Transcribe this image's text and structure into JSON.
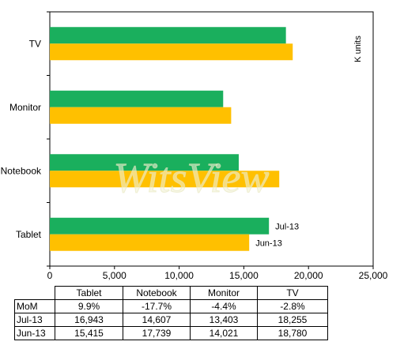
{
  "chart_data": {
    "type": "bar",
    "orientation": "horizontal",
    "categories": [
      "TV",
      "Monitor",
      "Notebook",
      "Tablet"
    ],
    "series": [
      {
        "name": "Jul-13",
        "values": [
          18255,
          13403,
          14607,
          16943
        ],
        "color": "#1aaf5d"
      },
      {
        "name": "Jun-13",
        "values": [
          18780,
          14021,
          17739,
          15415
        ],
        "color": "#ffc000"
      }
    ],
    "xlim": [
      0,
      25000
    ],
    "x_ticks": [
      "0",
      "5,000",
      "10,000",
      "15,000",
      "20,000",
      "25,000"
    ],
    "unit_label": "K units",
    "watermark": "WitsView",
    "series_labels_on": "Tablet",
    "grid": false
  },
  "table": {
    "columns": [
      "Tablet",
      "Notebook",
      "Monitor",
      "TV"
    ],
    "rows": [
      {
        "label": "MoM",
        "values": [
          "9.9%",
          "-17.7%",
          "-4.4%",
          "-2.8%"
        ]
      },
      {
        "label": "Jul-13",
        "values": [
          "16,943",
          "14,607",
          "13,403",
          "18,255"
        ]
      },
      {
        "label": "Jun-13",
        "values": [
          "15,415",
          "17,739",
          "14,021",
          "18,780"
        ]
      }
    ]
  }
}
